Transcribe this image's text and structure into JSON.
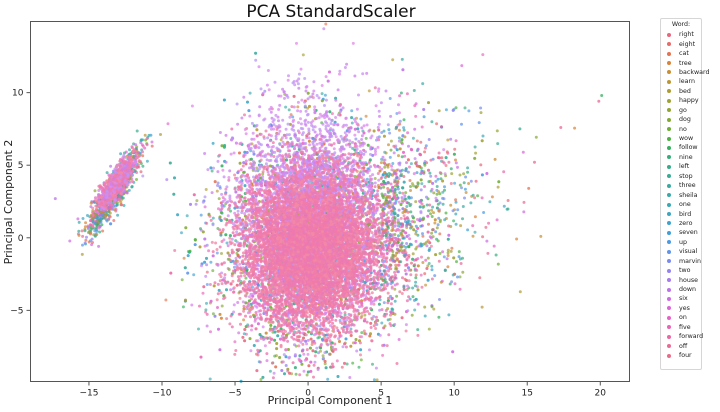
{
  "chart_data": {
    "type": "scatter",
    "title": "PCA StandardScaler",
    "xlabel": "Principal Component 1",
    "ylabel": "Principal Component 2",
    "xlim": [
      -19,
      22
    ],
    "ylim": [
      -9.9,
      14.9
    ],
    "xticks": [
      -15,
      -10,
      -5,
      0,
      5,
      10,
      15,
      20
    ],
    "yticks": [
      -5,
      0,
      5,
      10
    ],
    "grid": false,
    "legend_position": "outside right",
    "legend": {
      "title": "Word:",
      "entries": [
        {
          "label": "right",
          "color": "#e8677c"
        },
        {
          "label": "eight",
          "color": "#e86a6a"
        },
        {
          "label": "cat",
          "color": "#e57350"
        },
        {
          "label": "tree",
          "color": "#d98338"
        },
        {
          "label": "backward",
          "color": "#c98f32"
        },
        {
          "label": "learn",
          "color": "#bb9632"
        },
        {
          "label": "bed",
          "color": "#ad9c32"
        },
        {
          "label": "happy",
          "color": "#9fa232"
        },
        {
          "label": "go",
          "color": "#92a633"
        },
        {
          "label": "dog",
          "color": "#83aa33"
        },
        {
          "label": "no",
          "color": "#6eae34"
        },
        {
          "label": "wow",
          "color": "#4eb242"
        },
        {
          "label": "follow",
          "color": "#34b05e"
        },
        {
          "label": "nine",
          "color": "#36ae78"
        },
        {
          "label": "left",
          "color": "#37ac88"
        },
        {
          "label": "stop",
          "color": "#38ab95"
        },
        {
          "label": "three",
          "color": "#39aaa0"
        },
        {
          "label": "sheila",
          "color": "#3aa9ab"
        },
        {
          "label": "one",
          "color": "#3ba8b6"
        },
        {
          "label": "bird",
          "color": "#3ca6c1"
        },
        {
          "label": "zero",
          "color": "#3da3cc"
        },
        {
          "label": "seven",
          "color": "#3f9fd8"
        },
        {
          "label": "up",
          "color": "#4a9ae4"
        },
        {
          "label": "visual",
          "color": "#5f93ec"
        },
        {
          "label": "marvin",
          "color": "#7a8bf0"
        },
        {
          "label": "two",
          "color": "#9283f0"
        },
        {
          "label": "house",
          "color": "#a77bee"
        },
        {
          "label": "down",
          "color": "#bb73ea"
        },
        {
          "label": "six",
          "color": "#cd6be4"
        },
        {
          "label": "yes",
          "color": "#dc65d8"
        },
        {
          "label": "on",
          "color": "#e662c8"
        },
        {
          "label": "five",
          "color": "#e964b6"
        },
        {
          "label": "forward",
          "color": "#ea67a5"
        },
        {
          "label": "off",
          "color": "#ea6a96"
        },
        {
          "label": "four",
          "color": "#e96b88"
        }
      ]
    },
    "clusters": [
      {
        "name": "main",
        "center": [
          0.2,
          -0.5
        ],
        "spread": [
          3.2,
          4.0
        ],
        "x_range": [
          -7,
          12
        ],
        "y_range": [
          -9,
          13.2
        ],
        "core_color": "#f27aa8",
        "halo_color": "#d88af0",
        "approx_points": "very dense"
      },
      {
        "name": "secondary",
        "center": [
          -13.3,
          3.2
        ],
        "spread": [
          1.0,
          1.4
        ],
        "tilt": 0.55,
        "x_range": [
          -17.3,
          -9
        ],
        "y_range": [
          -0.5,
          6.5
        ],
        "core_color": "#f27aa8",
        "halo_color": "#c890f0",
        "approx_points": "dense"
      },
      {
        "name": "outliers_right",
        "x_range": [
          5,
          20.1
        ],
        "y_range": [
          -4.5,
          9.8
        ],
        "sparse": true
      }
    ]
  }
}
